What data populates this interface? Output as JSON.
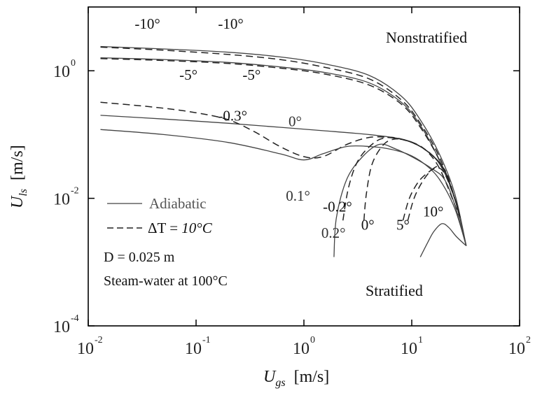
{
  "chart_data": {
    "type": "line",
    "xscale": "log",
    "yscale": "log",
    "xlim": [
      0.01,
      100
    ],
    "ylim": [
      0.0001,
      10
    ],
    "x_ticks": [
      {
        "base": "10",
        "exp": "-2"
      },
      {
        "base": "10",
        "exp": "-1"
      },
      {
        "base": "10",
        "exp": "0"
      },
      {
        "base": "10",
        "exp": "1"
      },
      {
        "base": "10",
        "exp": "2"
      }
    ],
    "y_ticks": [
      {
        "base": "10",
        "exp": "0",
        "value": 1
      },
      {
        "base": "10",
        "exp": "-2",
        "value": 0.01
      },
      {
        "base": "10",
        "exp": "-4",
        "value": 0.0001
      }
    ],
    "xlabel": {
      "main": "U",
      "sub": "gs",
      "unit": "[m/s]"
    },
    "ylabel": {
      "main": "U",
      "sub": "ls",
      "unit": "[m/s]"
    },
    "regions": {
      "upper": "Nonstratified",
      "lower": "Stratified"
    },
    "notes": [
      "D = 0.025 m",
      "Steam-water at 100°C"
    ],
    "legend": {
      "adiabatic": "Adiabatic",
      "heated_prefix": "ΔT = ",
      "heated_value": "10°C"
    },
    "series": [
      {
        "style": "solid",
        "points": [
          [
            0.013,
            2.4
          ],
          [
            0.05,
            2.2
          ],
          [
            0.2,
            1.95
          ],
          [
            0.6,
            1.65
          ],
          [
            1.5,
            1.3
          ],
          [
            4,
            0.85
          ],
          [
            8,
            0.4
          ],
          [
            12,
            0.17
          ],
          [
            18,
            0.05
          ],
          [
            25,
            0.012
          ],
          [
            32,
            0.0018
          ]
        ]
      },
      {
        "style": "dashed",
        "points": [
          [
            0.013,
            2.35
          ],
          [
            0.05,
            2.1
          ],
          [
            0.2,
            1.8
          ],
          [
            0.6,
            1.5
          ],
          [
            1.5,
            1.15
          ],
          [
            4,
            0.75
          ],
          [
            8,
            0.35
          ],
          [
            12,
            0.15
          ],
          [
            18,
            0.045
          ],
          [
            25,
            0.01
          ],
          [
            28,
            0.005
          ]
        ]
      },
      {
        "style": "solid",
        "points": [
          [
            0.013,
            1.6
          ],
          [
            0.05,
            1.5
          ],
          [
            0.2,
            1.35
          ],
          [
            0.6,
            1.15
          ],
          [
            1.5,
            0.95
          ],
          [
            4,
            0.65
          ],
          [
            8,
            0.32
          ],
          [
            12,
            0.14
          ],
          [
            18,
            0.04
          ],
          [
            25,
            0.01
          ],
          [
            32,
            0.0018
          ]
        ]
      },
      {
        "style": "dashed",
        "points": [
          [
            0.013,
            1.55
          ],
          [
            0.05,
            1.45
          ],
          [
            0.2,
            1.3
          ],
          [
            0.6,
            1.1
          ],
          [
            1.5,
            0.9
          ],
          [
            4,
            0.6
          ],
          [
            8,
            0.3
          ],
          [
            12,
            0.13
          ],
          [
            18,
            0.04
          ],
          [
            25,
            0.01
          ],
          [
            28,
            0.005
          ]
        ]
      },
      {
        "style": "solid",
        "points": [
          [
            0.013,
            0.2
          ],
          [
            0.05,
            0.175
          ],
          [
            0.2,
            0.15
          ],
          [
            0.6,
            0.13
          ],
          [
            1.5,
            0.115
          ],
          [
            4,
            0.1
          ],
          [
            8,
            0.085
          ],
          [
            12,
            0.065
          ],
          [
            18,
            0.035
          ],
          [
            25,
            0.01
          ],
          [
            32,
            0.0018
          ]
        ]
      },
      {
        "style": "dashed",
        "points": [
          [
            0.013,
            0.32
          ],
          [
            0.04,
            0.27
          ],
          [
            0.1,
            0.22
          ],
          [
            0.2,
            0.17
          ],
          [
            0.35,
            0.11
          ],
          [
            0.6,
            0.065
          ],
          [
            1.0,
            0.045
          ],
          [
            1.5,
            0.045
          ],
          [
            2.5,
            0.07
          ],
          [
            4,
            0.09
          ],
          [
            6,
            0.09
          ],
          [
            9,
            0.08
          ],
          [
            13,
            0.06
          ],
          [
            18,
            0.03
          ],
          [
            25,
            0.008
          ],
          [
            28,
            0.005
          ]
        ]
      },
      {
        "style": "solid",
        "points": [
          [
            0.013,
            0.12
          ],
          [
            0.05,
            0.1
          ],
          [
            0.2,
            0.075
          ],
          [
            0.6,
            0.05
          ],
          [
            1.0,
            0.04
          ],
          [
            1.5,
            0.05
          ],
          [
            2.5,
            0.065
          ],
          [
            4,
            0.065
          ],
          [
            6,
            0.06
          ],
          [
            9,
            0.05
          ],
          [
            13,
            0.035
          ],
          [
            18,
            0.02
          ],
          [
            25,
            0.007
          ],
          [
            32,
            0.0018
          ]
        ]
      },
      {
        "style": "solid",
        "points": [
          [
            1.9,
            0.0012
          ],
          [
            2.0,
            0.005
          ],
          [
            2.5,
            0.02
          ],
          [
            3.5,
            0.045
          ],
          [
            5,
            0.07
          ],
          [
            7,
            0.06
          ],
          [
            10,
            0.045
          ],
          [
            15,
            0.03
          ],
          [
            20,
            0.02
          ],
          [
            25,
            0.008
          ],
          [
            32,
            0.0018
          ]
        ]
      },
      {
        "style": "dashed",
        "points": [
          [
            2.3,
            0.0045
          ],
          [
            2.6,
            0.015
          ],
          [
            3.2,
            0.04
          ],
          [
            4.5,
            0.075
          ],
          [
            6,
            0.09
          ],
          [
            8,
            0.085
          ],
          [
            11,
            0.07
          ],
          [
            15,
            0.05
          ],
          [
            20,
            0.028
          ],
          [
            25,
            0.01
          ],
          [
            28,
            0.005
          ]
        ]
      },
      {
        "style": "dashed",
        "points": [
          [
            3.6,
            0.0045
          ],
          [
            3.8,
            0.012
          ],
          [
            4.3,
            0.035
          ],
          [
            5.5,
            0.07
          ],
          [
            7,
            0.085
          ],
          [
            9,
            0.08
          ],
          [
            12,
            0.065
          ],
          [
            16,
            0.045
          ],
          [
            20,
            0.028
          ],
          [
            25,
            0.01
          ],
          [
            28,
            0.005
          ]
        ]
      },
      {
        "style": "dashed",
        "points": [
          [
            8.3,
            0.0045
          ],
          [
            9.5,
            0.01
          ],
          [
            11.5,
            0.018
          ],
          [
            14,
            0.025
          ],
          [
            17,
            0.03
          ],
          [
            20,
            0.025
          ],
          [
            25,
            0.01
          ],
          [
            28,
            0.005
          ]
        ]
      },
      {
        "style": "dashed",
        "points": [
          [
            9.2,
            0.0045
          ],
          [
            10.5,
            0.01
          ],
          [
            12.5,
            0.018
          ],
          [
            15,
            0.027
          ],
          [
            18,
            0.032
          ],
          [
            21,
            0.025
          ],
          [
            25,
            0.01
          ],
          [
            28,
            0.005
          ]
        ]
      },
      {
        "style": "solid",
        "points": [
          [
            12,
            0.0012
          ],
          [
            14,
            0.002
          ],
          [
            16,
            0.003
          ],
          [
            19,
            0.004
          ],
          [
            22,
            0.0035
          ],
          [
            26,
            0.0025
          ],
          [
            32,
            0.0018
          ]
        ]
      }
    ],
    "curve_labels": [
      {
        "text": "-10°",
        "x": 0.027,
        "y": 4.6,
        "shade": "dark"
      },
      {
        "text": "-10°",
        "x": 0.16,
        "y": 4.6,
        "shade": "dark"
      },
      {
        "text": "-5°",
        "x": 0.07,
        "y": 0.72,
        "shade": "dark"
      },
      {
        "text": "-5°",
        "x": 0.27,
        "y": 0.72,
        "shade": "dark"
      },
      {
        "text": "-0.3°",
        "x": 0.16,
        "y": 0.165,
        "shade": "dark"
      },
      {
        "text": "0°",
        "x": 0.72,
        "y": 0.135,
        "shade": "gray"
      },
      {
        "text": "0.1°",
        "x": 0.68,
        "y": 0.0092,
        "shade": "gray"
      },
      {
        "text": "-0.2°",
        "x": 1.5,
        "y": 0.0062,
        "shade": "dark"
      },
      {
        "text": "0.2°",
        "x": 1.45,
        "y": 0.0024,
        "shade": "gray"
      },
      {
        "text": "0°",
        "x": 3.4,
        "y": 0.0032,
        "shade": "dark"
      },
      {
        "text": "5°",
        "x": 7.2,
        "y": 0.0032,
        "shade": "dark"
      },
      {
        "text": "10°",
        "x": 12.7,
        "y": 0.0052,
        "shade": "dark"
      }
    ]
  }
}
